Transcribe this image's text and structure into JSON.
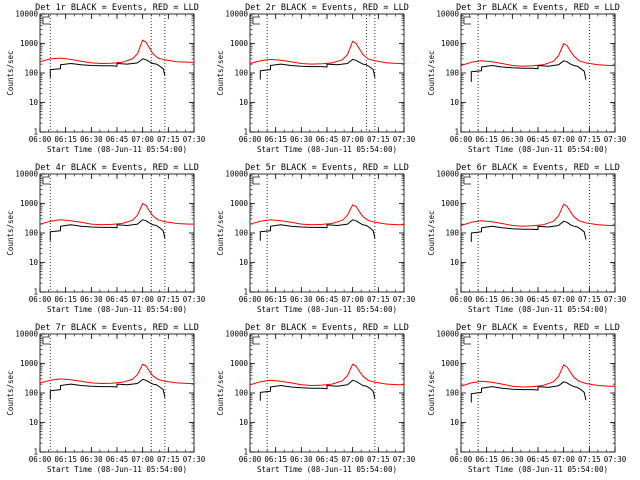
{
  "figure": {
    "xlabel": "Start Time (08-Jun-11 05:54:00)",
    "ylabel": "Counts/sec",
    "x_ticks": [
      "06:00",
      "06:15",
      "06:30",
      "06:45",
      "07:00",
      "07:15",
      "07:30"
    ],
    "y_ticks": [
      "1",
      "10",
      "100",
      "1000",
      "10000"
    ],
    "colors": {
      "events": "#000000",
      "lld": "#ff0000",
      "axes": "#000000"
    },
    "corner_mark": "E"
  },
  "chart_data": [
    {
      "type": "line",
      "title": "Det 1r BLACK = Events, RED = LLD",
      "xlim": [
        "06:00",
        "07:30"
      ],
      "ylim": [
        1,
        10000
      ],
      "yscale": "log",
      "vlines": [
        "06:06",
        "07:05",
        "07:13"
      ],
      "series": [
        {
          "x": [
            "06:00",
            "06:06",
            "06:12",
            "06:18",
            "06:24",
            "06:30",
            "06:36",
            "06:42",
            "06:48",
            "06:54",
            "06:57",
            "07:00",
            "07:02",
            "07:04",
            "07:06",
            "07:09",
            "07:13",
            "07:20",
            "07:27",
            "07:30"
          ],
          "values": [
            240,
            300,
            320,
            290,
            250,
            220,
            210,
            215,
            230,
            300,
            450,
            1300,
            1100,
            700,
            450,
            320,
            280,
            240,
            230,
            230
          ]
        },
        {
          "x": [
            "06:06",
            "06:06",
            "06:12",
            "06:12",
            "06:18",
            "06:24",
            "06:30",
            "06:36",
            "06:42",
            "06:45",
            "06:45",
            "06:51",
            "06:57",
            "07:00",
            "07:02",
            "07:04",
            "07:06",
            "07:08",
            "07:10",
            "07:12",
            "07:13"
          ],
          "values": [
            70,
            130,
            140,
            190,
            210,
            190,
            180,
            175,
            175,
            170,
            210,
            200,
            220,
            300,
            280,
            240,
            210,
            200,
            170,
            140,
            80
          ]
        }
      ]
    },
    {
      "type": "line",
      "title": "Det 2r BLACK = Events, RED = LLD",
      "xlim": [
        "06:00",
        "07:30"
      ],
      "ylim": [
        1,
        10000
      ],
      "yscale": "log",
      "vlines": [
        "06:10",
        "07:08",
        "07:13"
      ],
      "series": [
        {
          "x": [
            "06:00",
            "06:06",
            "06:12",
            "06:18",
            "06:24",
            "06:30",
            "06:36",
            "06:42",
            "06:48",
            "06:54",
            "06:57",
            "07:00",
            "07:02",
            "07:04",
            "07:06",
            "07:09",
            "07:13",
            "07:20",
            "07:27",
            "07:30"
          ],
          "values": [
            210,
            260,
            290,
            270,
            240,
            210,
            200,
            205,
            220,
            280,
            420,
            1200,
            1000,
            650,
            420,
            300,
            260,
            220,
            210,
            210
          ]
        },
        {
          "x": [
            "06:06",
            "06:06",
            "06:12",
            "06:12",
            "06:18",
            "06:24",
            "06:30",
            "06:36",
            "06:42",
            "06:45",
            "06:45",
            "06:51",
            "06:57",
            "07:00",
            "07:02",
            "07:04",
            "07:06",
            "07:08",
            "07:10",
            "07:12",
            "07:13"
          ],
          "values": [
            60,
            120,
            130,
            180,
            200,
            180,
            170,
            165,
            165,
            160,
            200,
            190,
            210,
            290,
            270,
            230,
            200,
            190,
            160,
            130,
            70
          ]
        }
      ]
    },
    {
      "type": "line",
      "title": "Det 3r BLACK = Events, RED = LLD",
      "xlim": [
        "06:00",
        "07:30"
      ],
      "ylim": [
        1,
        10000
      ],
      "yscale": "log",
      "vlines": [
        "06:10",
        "07:15"
      ],
      "series": [
        {
          "x": [
            "06:00",
            "06:06",
            "06:12",
            "06:18",
            "06:24",
            "06:30",
            "06:36",
            "06:42",
            "06:48",
            "06:54",
            "06:57",
            "07:00",
            "07:02",
            "07:04",
            "07:06",
            "07:09",
            "07:13",
            "07:20",
            "07:27",
            "07:30"
          ],
          "values": [
            180,
            230,
            260,
            240,
            210,
            180,
            170,
            175,
            190,
            250,
            380,
            1000,
            850,
            550,
            380,
            260,
            220,
            190,
            180,
            180
          ]
        },
        {
          "x": [
            "06:06",
            "06:06",
            "06:12",
            "06:12",
            "06:18",
            "06:24",
            "06:30",
            "06:36",
            "06:42",
            "06:45",
            "06:45",
            "06:51",
            "06:57",
            "07:00",
            "07:02",
            "07:04",
            "07:06",
            "07:08",
            "07:10",
            "07:12",
            "07:13"
          ],
          "values": [
            50,
            110,
            120,
            160,
            180,
            160,
            150,
            145,
            145,
            140,
            180,
            170,
            190,
            260,
            240,
            200,
            180,
            170,
            140,
            115,
            60
          ]
        }
      ]
    },
    {
      "type": "line",
      "title": "Det 4r BLACK = Events, RED = LLD",
      "xlim": [
        "06:00",
        "07:30"
      ],
      "ylim": [
        1,
        10000
      ],
      "yscale": "log",
      "vlines": [
        "06:06",
        "07:05",
        "07:13"
      ],
      "series": [
        {
          "x": [
            "06:00",
            "06:06",
            "06:12",
            "06:18",
            "06:24",
            "06:30",
            "06:36",
            "06:42",
            "06:48",
            "06:54",
            "06:57",
            "07:00",
            "07:02",
            "07:04",
            "07:06",
            "07:09",
            "07:13",
            "07:20",
            "07:27",
            "07:30"
          ],
          "values": [
            200,
            250,
            280,
            260,
            230,
            200,
            190,
            195,
            210,
            270,
            400,
            1000,
            850,
            550,
            380,
            280,
            240,
            210,
            200,
            200
          ]
        },
        {
          "x": [
            "06:06",
            "06:06",
            "06:12",
            "06:12",
            "06:18",
            "06:24",
            "06:30",
            "06:36",
            "06:42",
            "06:45",
            "06:45",
            "06:51",
            "06:57",
            "07:00",
            "07:02",
            "07:04",
            "07:06",
            "07:08",
            "07:10",
            "07:12",
            "07:13"
          ],
          "values": [
            55,
            110,
            120,
            170,
            190,
            170,
            160,
            155,
            155,
            150,
            190,
            180,
            200,
            280,
            260,
            220,
            190,
            180,
            150,
            120,
            65
          ]
        }
      ]
    },
    {
      "type": "line",
      "title": "Det 5r BLACK = Events, RED = LLD",
      "xlim": [
        "06:00",
        "07:30"
      ],
      "ylim": [
        1,
        10000
      ],
      "yscale": "log",
      "vlines": [
        "06:10",
        "07:13"
      ],
      "series": [
        {
          "x": [
            "06:00",
            "06:06",
            "06:12",
            "06:18",
            "06:24",
            "06:30",
            "06:36",
            "06:42",
            "06:48",
            "06:54",
            "06:57",
            "07:00",
            "07:02",
            "07:04",
            "07:06",
            "07:09",
            "07:13",
            "07:20",
            "07:27",
            "07:30"
          ],
          "values": [
            200,
            250,
            280,
            260,
            230,
            200,
            190,
            195,
            210,
            270,
            400,
            900,
            800,
            520,
            360,
            270,
            230,
            200,
            190,
            190
          ]
        },
        {
          "x": [
            "06:06",
            "06:06",
            "06:12",
            "06:12",
            "06:18",
            "06:24",
            "06:30",
            "06:36",
            "06:42",
            "06:45",
            "06:45",
            "06:51",
            "06:57",
            "07:00",
            "07:02",
            "07:04",
            "07:06",
            "07:08",
            "07:10",
            "07:12",
            "07:13"
          ],
          "values": [
            55,
            110,
            120,
            170,
            190,
            170,
            160,
            155,
            155,
            150,
            190,
            180,
            200,
            280,
            260,
            220,
            190,
            180,
            150,
            120,
            65
          ]
        }
      ]
    },
    {
      "type": "line",
      "title": "Det 6r BLACK = Events, RED = LLD",
      "xlim": [
        "06:00",
        "07:30"
      ],
      "ylim": [
        1,
        10000
      ],
      "yscale": "log",
      "vlines": [
        "06:10",
        "07:15"
      ],
      "series": [
        {
          "x": [
            "06:00",
            "06:06",
            "06:12",
            "06:18",
            "06:24",
            "06:30",
            "06:36",
            "06:42",
            "06:48",
            "06:54",
            "06:57",
            "07:00",
            "07:02",
            "07:04",
            "07:06",
            "07:09",
            "07:13",
            "07:20",
            "07:27",
            "07:30"
          ],
          "values": [
            180,
            230,
            260,
            240,
            210,
            180,
            170,
            175,
            190,
            250,
            380,
            950,
            800,
            520,
            360,
            260,
            220,
            190,
            180,
            180
          ]
        },
        {
          "x": [
            "06:06",
            "06:06",
            "06:12",
            "06:12",
            "06:18",
            "06:24",
            "06:30",
            "06:36",
            "06:42",
            "06:45",
            "06:45",
            "06:51",
            "06:57",
            "07:00",
            "07:02",
            "07:04",
            "07:06",
            "07:08",
            "07:10",
            "07:12",
            "07:13"
          ],
          "values": [
            50,
            100,
            110,
            150,
            170,
            150,
            140,
            135,
            135,
            130,
            170,
            160,
            180,
            250,
            230,
            190,
            170,
            160,
            135,
            110,
            60
          ]
        }
      ]
    },
    {
      "type": "line",
      "title": "Det 7r BLACK = Events, RED = LLD",
      "xlim": [
        "06:00",
        "07:30"
      ],
      "ylim": [
        1,
        10000
      ],
      "yscale": "log",
      "vlines": [
        "06:06",
        "07:05",
        "07:13"
      ],
      "series": [
        {
          "x": [
            "06:00",
            "06:06",
            "06:12",
            "06:18",
            "06:24",
            "06:30",
            "06:36",
            "06:42",
            "06:48",
            "06:54",
            "06:57",
            "07:00",
            "07:02",
            "07:04",
            "07:06",
            "07:09",
            "07:13",
            "07:20",
            "07:27",
            "07:30"
          ],
          "values": [
            220,
            270,
            300,
            280,
            250,
            220,
            210,
            215,
            230,
            290,
            420,
            950,
            820,
            540,
            380,
            290,
            250,
            220,
            210,
            210
          ]
        },
        {
          "x": [
            "06:06",
            "06:06",
            "06:12",
            "06:12",
            "06:18",
            "06:24",
            "06:30",
            "06:36",
            "06:42",
            "06:45",
            "06:45",
            "06:51",
            "06:57",
            "07:00",
            "07:02",
            "07:04",
            "07:06",
            "07:08",
            "07:10",
            "07:12",
            "07:13"
          ],
          "values": [
            60,
            120,
            130,
            180,
            200,
            180,
            170,
            165,
            165,
            160,
            200,
            190,
            210,
            290,
            270,
            230,
            200,
            190,
            160,
            130,
            70
          ]
        }
      ]
    },
    {
      "type": "line",
      "title": "Det 8r BLACK = Events, RED = LLD",
      "xlim": [
        "06:00",
        "07:30"
      ],
      "ylim": [
        1,
        10000
      ],
      "yscale": "log",
      "vlines": [
        "06:10",
        "07:13"
      ],
      "series": [
        {
          "x": [
            "06:00",
            "06:06",
            "06:12",
            "06:18",
            "06:24",
            "06:30",
            "06:36",
            "06:42",
            "06:48",
            "06:54",
            "06:57",
            "07:00",
            "07:02",
            "07:04",
            "07:06",
            "07:09",
            "07:13",
            "07:20",
            "07:27",
            "07:30"
          ],
          "values": [
            190,
            240,
            270,
            250,
            220,
            190,
            180,
            185,
            200,
            260,
            390,
            950,
            820,
            540,
            370,
            270,
            230,
            200,
            190,
            190
          ]
        },
        {
          "x": [
            "06:06",
            "06:06",
            "06:12",
            "06:12",
            "06:18",
            "06:24",
            "06:30",
            "06:36",
            "06:42",
            "06:45",
            "06:45",
            "06:51",
            "06:57",
            "07:00",
            "07:02",
            "07:04",
            "07:06",
            "07:08",
            "07:10",
            "07:12",
            "07:13"
          ],
          "values": [
            55,
            105,
            115,
            160,
            180,
            160,
            150,
            145,
            145,
            140,
            180,
            170,
            190,
            270,
            250,
            210,
            180,
            170,
            145,
            115,
            62
          ]
        }
      ]
    },
    {
      "type": "line",
      "title": "Det 9r BLACK = Events, RED = LLD",
      "xlim": [
        "06:00",
        "07:30"
      ],
      "ylim": [
        1,
        10000
      ],
      "yscale": "log",
      "vlines": [
        "06:10",
        "07:15"
      ],
      "series": [
        {
          "x": [
            "06:00",
            "06:06",
            "06:12",
            "06:18",
            "06:24",
            "06:30",
            "06:36",
            "06:42",
            "06:48",
            "06:54",
            "06:57",
            "07:00",
            "07:02",
            "07:04",
            "07:06",
            "07:09",
            "07:13",
            "07:20",
            "07:27",
            "07:30"
          ],
          "values": [
            170,
            220,
            250,
            230,
            200,
            170,
            160,
            165,
            180,
            240,
            360,
            900,
            760,
            500,
            340,
            250,
            210,
            180,
            170,
            170
          ]
        },
        {
          "x": [
            "06:06",
            "06:06",
            "06:12",
            "06:12",
            "06:18",
            "06:24",
            "06:30",
            "06:36",
            "06:42",
            "06:45",
            "06:45",
            "06:51",
            "06:57",
            "07:00",
            "07:02",
            "07:04",
            "07:06",
            "07:08",
            "07:10",
            "07:12",
            "07:13"
          ],
          "values": [
            48,
            95,
            105,
            145,
            165,
            145,
            135,
            130,
            130,
            125,
            165,
            155,
            175,
            240,
            220,
            185,
            165,
            155,
            130,
            105,
            58
          ]
        }
      ]
    }
  ]
}
